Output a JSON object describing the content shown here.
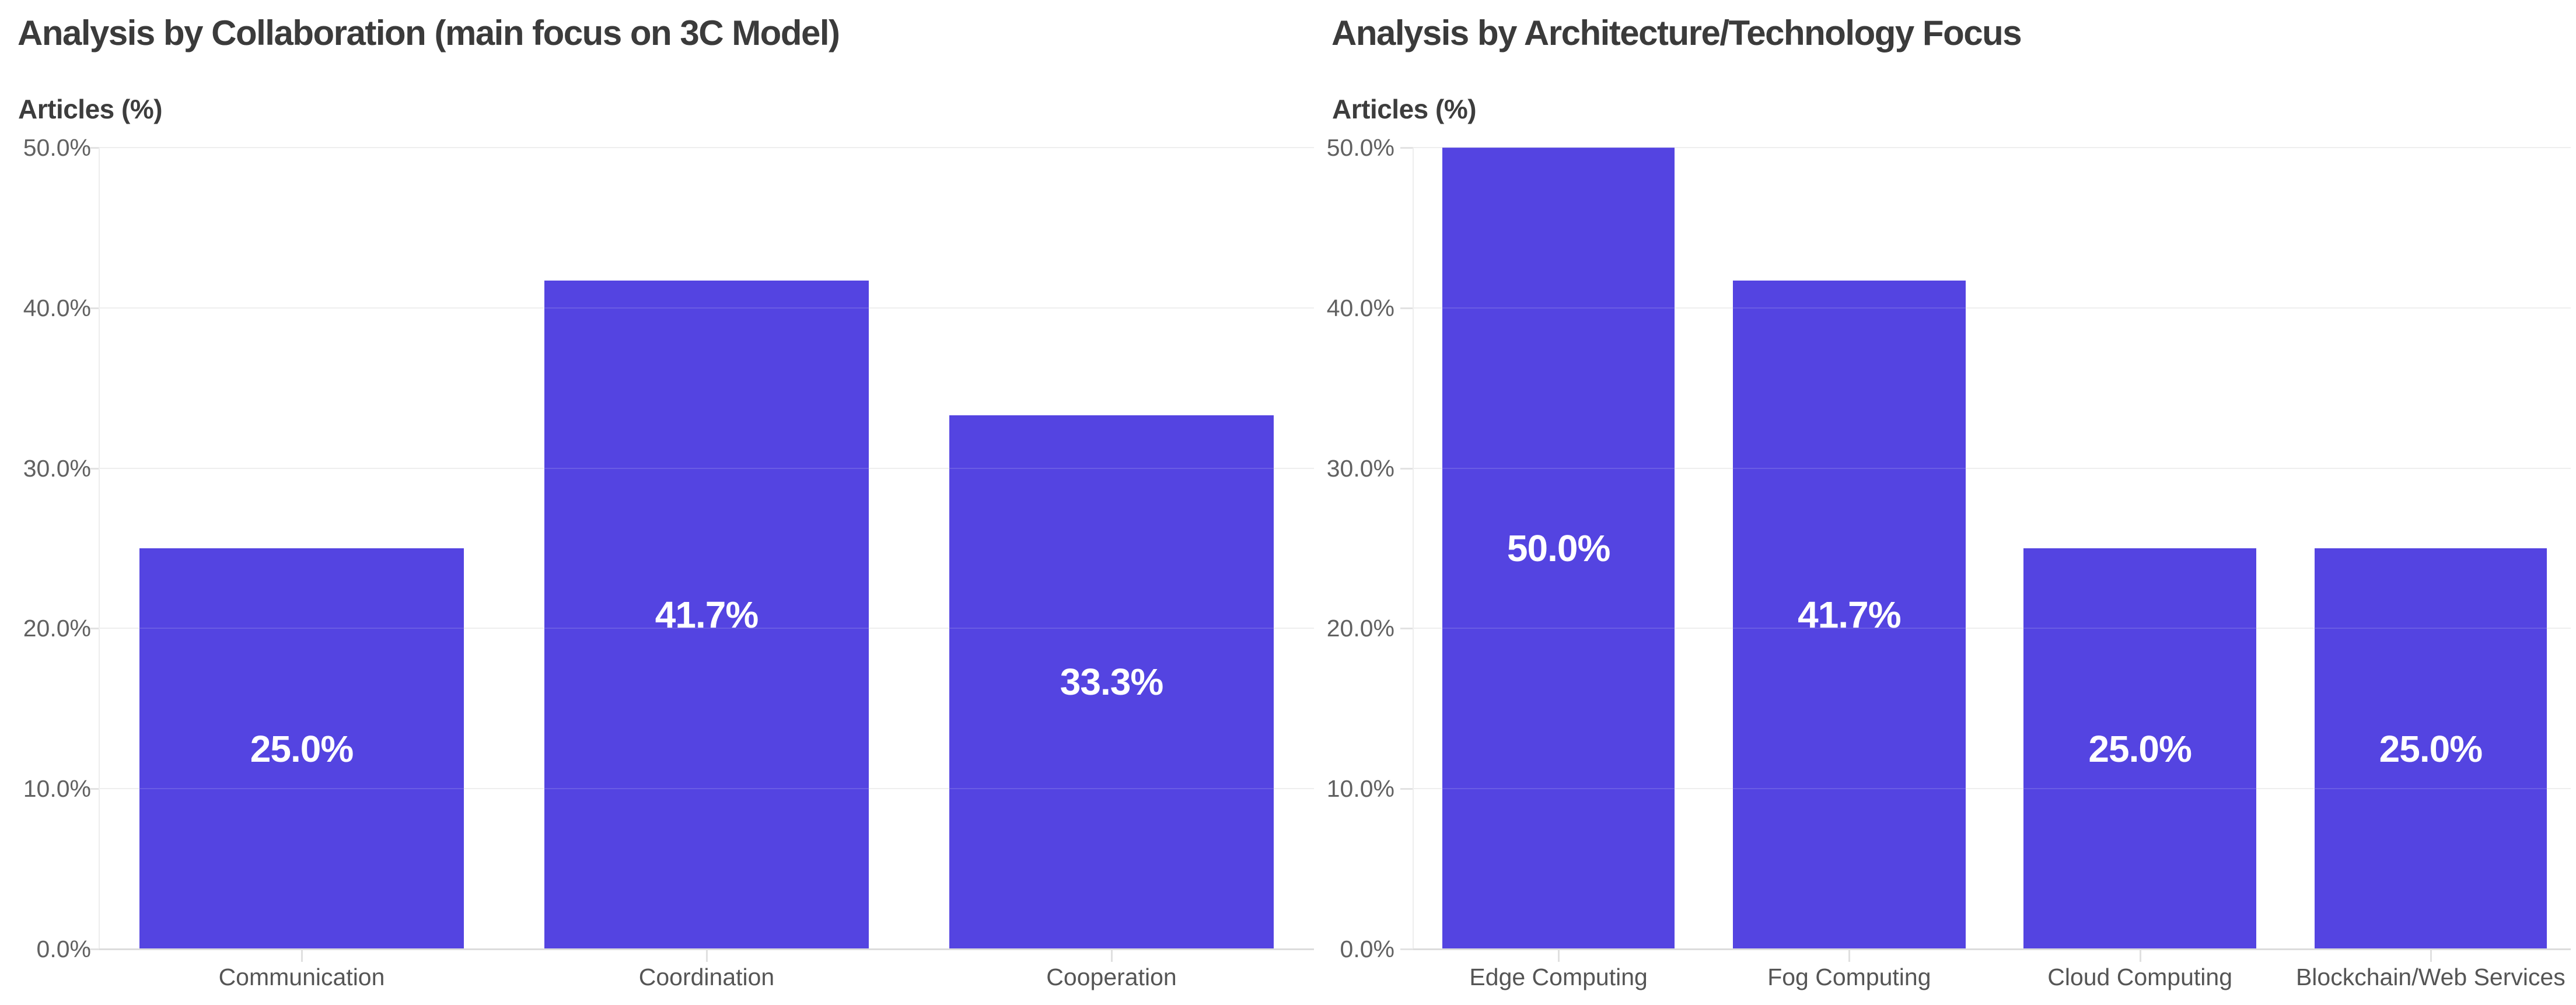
{
  "page": {
    "background": "#ffffff"
  },
  "colors": {
    "bar": "#5444e1",
    "title_text": "#3b3b3b",
    "axis_tick_text": "#616161",
    "category_text": "#555555",
    "value_label_text": "#ffffff",
    "gridline": "#ececec",
    "axis_line": "#dcdcdc"
  },
  "chart_data": [
    {
      "type": "bar",
      "title": "Analysis by Collaboration (main focus on 3C Model)",
      "ylabel": "Articles (%)",
      "xlabel": "",
      "categories": [
        "Communication",
        "Coordination",
        "Cooperation"
      ],
      "values": [
        25.0,
        41.7,
        33.3
      ],
      "bar_labels": [
        "25.0%",
        "41.7%",
        "33.3%"
      ],
      "ylim": [
        0,
        50
      ],
      "ytick_values": [
        0,
        10,
        20,
        30,
        40,
        50
      ],
      "ytick_labels": [
        "0.0%",
        "10.0%",
        "20.0%",
        "30.0%",
        "40.0%",
        "50.0%"
      ],
      "grid": true,
      "legend": "none",
      "bar_color": "#5444e1"
    },
    {
      "type": "bar",
      "title": "Analysis by Architecture/Technology Focus",
      "ylabel": "Articles (%)",
      "xlabel": "",
      "categories": [
        "Edge Computing",
        "Fog Computing",
        "Cloud Computing",
        "Blockchain/Web Services"
      ],
      "values": [
        50.0,
        41.7,
        25.0,
        25.0
      ],
      "bar_labels": [
        "50.0%",
        "41.7%",
        "25.0%",
        "25.0%"
      ],
      "ylim": [
        0,
        50
      ],
      "ytick_values": [
        0,
        10,
        20,
        30,
        40,
        50
      ],
      "ytick_labels": [
        "0.0%",
        "10.0%",
        "20.0%",
        "30.0%",
        "40.0%",
        "50.0%"
      ],
      "grid": true,
      "legend": "none",
      "bar_color": "#5444e1"
    }
  ]
}
